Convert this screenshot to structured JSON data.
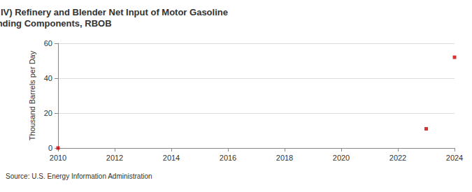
{
  "chart_data": {
    "type": "scatter",
    "title": "Annual Rocky Mountain (PADD IV) Refinery and Blender Net Input of Motor Gasoline Blending Components, RBOB",
    "y_label": "Thousand Barrels per Day",
    "source": "Source: U.S. Energy Information Administration",
    "x": [
      2010,
      2023,
      2024
    ],
    "values": [
      0,
      11,
      52
    ],
    "color": "#cc0000",
    "marker": "square",
    "xlim": [
      2010,
      2024
    ],
    "xticks": [
      2010,
      2012,
      2014,
      2016,
      2018,
      2020,
      2022,
      2024
    ],
    "ylim": [
      0,
      60
    ],
    "yticks": [
      0,
      20,
      40,
      60
    ],
    "grid": true
  }
}
